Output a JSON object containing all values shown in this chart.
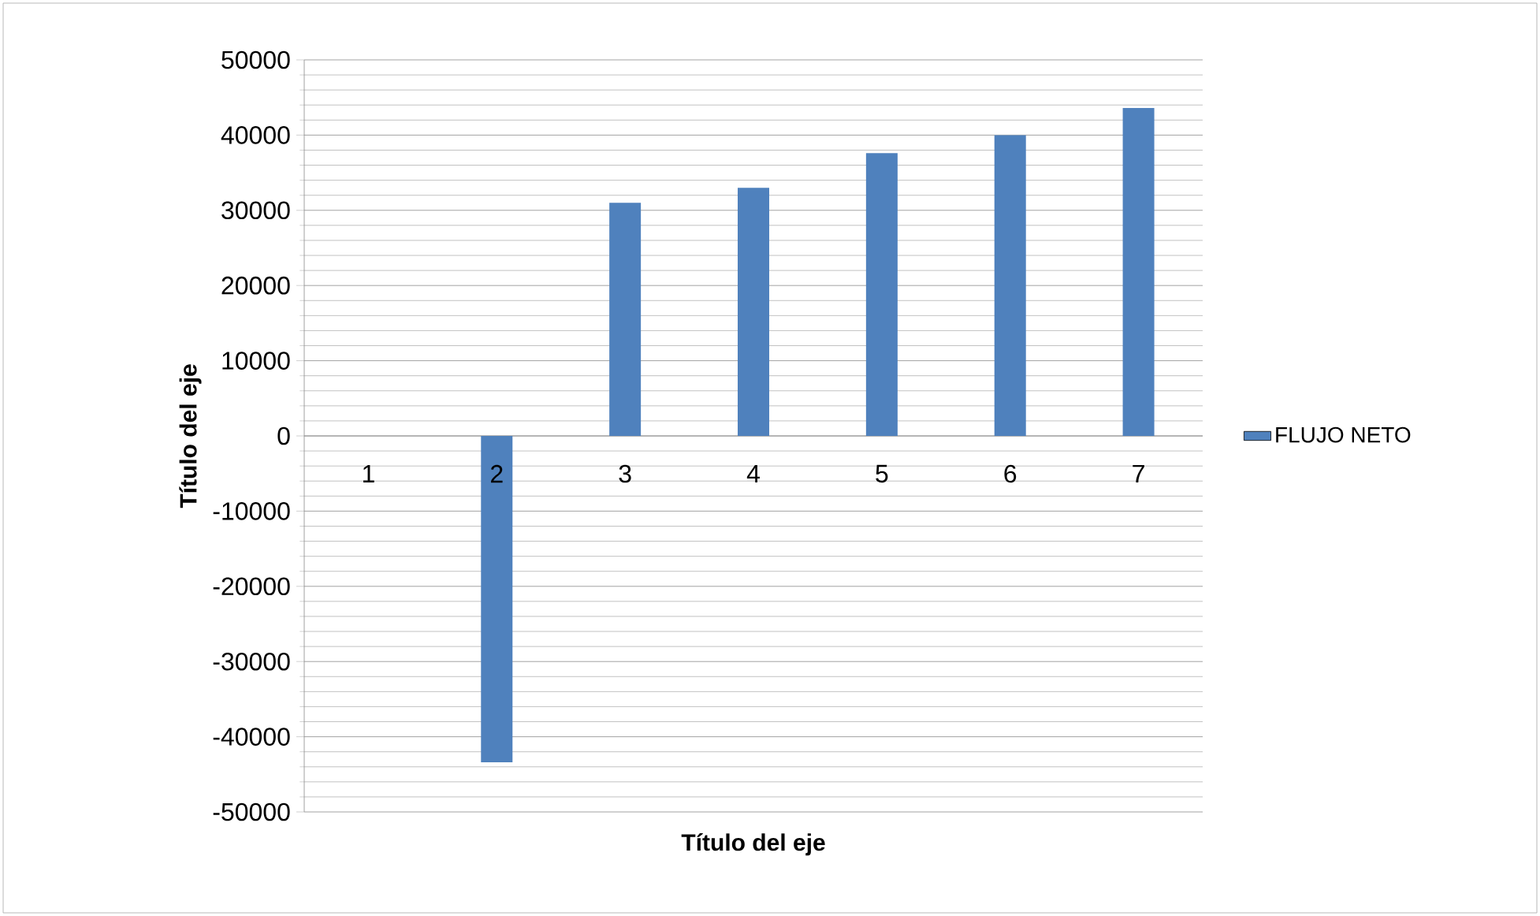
{
  "chart_data": {
    "type": "bar",
    "xlabel": "Título del eje",
    "ylabel": "Título del eje",
    "categories": [
      "1",
      "2",
      "3",
      "4",
      "5",
      "6",
      "7"
    ],
    "series": [
      {
        "name": "FLUJO NETO",
        "color": "#4f81bd",
        "values": [
          0,
          -43400,
          31000,
          33000,
          37600,
          40000,
          43600
        ]
      }
    ],
    "ylim": [
      -50000,
      50000
    ],
    "yticks": [
      -50000,
      -40000,
      -30000,
      -20000,
      -10000,
      0,
      10000,
      20000,
      30000,
      40000,
      50000
    ],
    "grid": "y",
    "legend": "right"
  }
}
